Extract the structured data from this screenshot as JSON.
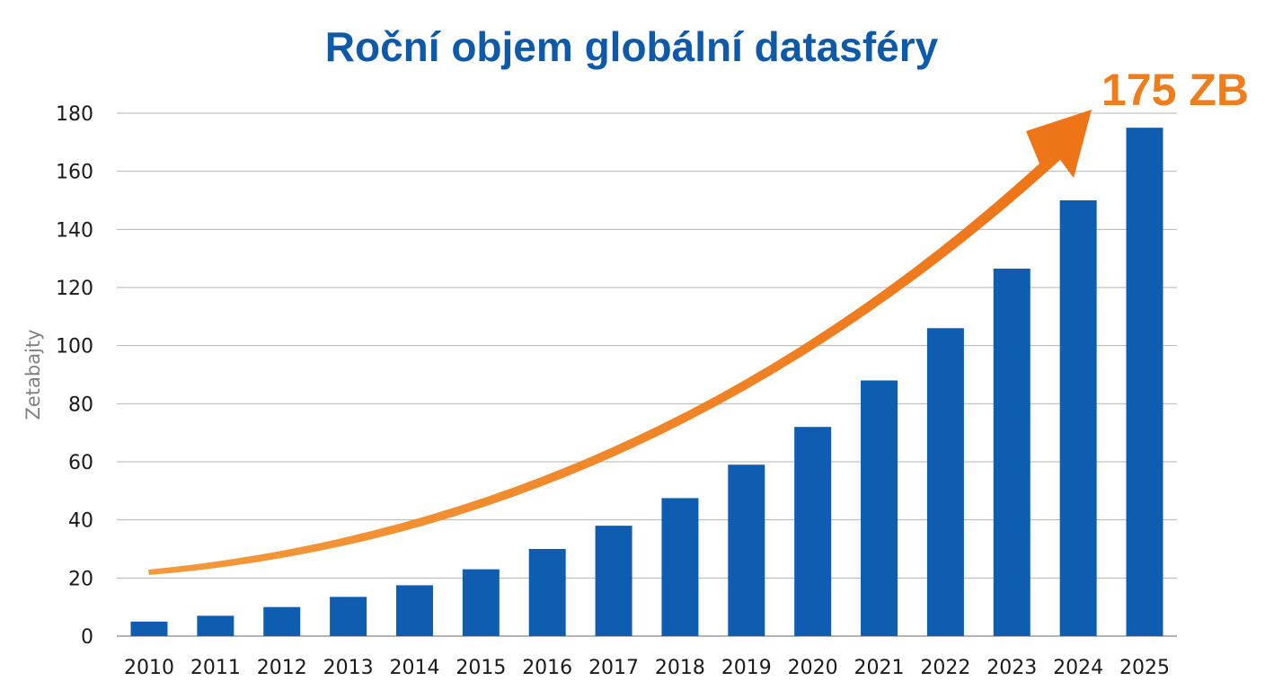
{
  "chart_data": {
    "type": "bar",
    "title": "Roční objem globální datasféry",
    "xlabel": "",
    "ylabel": "Zetabajty",
    "categories": [
      "2010",
      "2011",
      "2012",
      "2013",
      "2014",
      "2015",
      "2016",
      "2017",
      "2018",
      "2019",
      "2020",
      "2021",
      "2022",
      "2023",
      "2024",
      "2025"
    ],
    "values": [
      5,
      7,
      10,
      13.5,
      17.5,
      23,
      30,
      38,
      47.5,
      59,
      72,
      88,
      106,
      126.5,
      150,
      175
    ],
    "ylim": [
      0,
      180
    ],
    "yticks": [
      "0",
      "20",
      "40",
      "60",
      "80",
      "100",
      "120",
      "140",
      "160",
      "180"
    ],
    "grid": true,
    "legend": "none",
    "annotation": {
      "text": "175 ZB",
      "shape": "rising curved arrow pointing to top-right"
    },
    "colors": {
      "bar": "#0f5db0",
      "title": "#0f5aa8",
      "arrow": "#f07a1a",
      "annotation": "#ee7d1e",
      "grid": "#b3b3b3"
    }
  }
}
